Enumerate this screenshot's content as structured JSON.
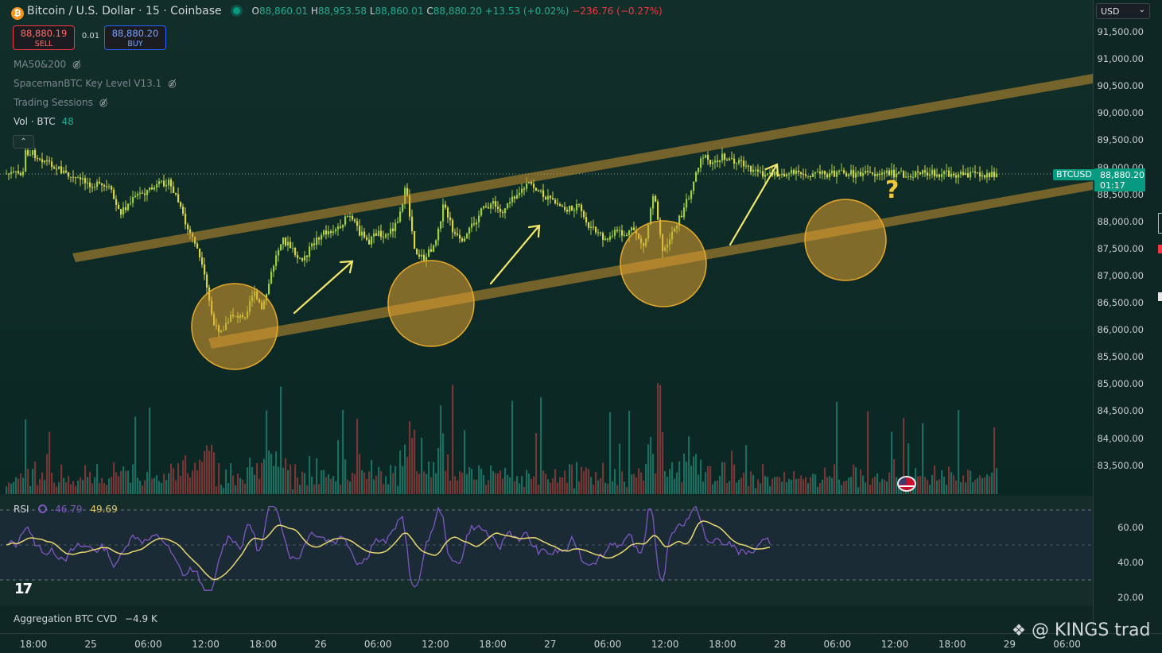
{
  "header": {
    "symbol": "Bitcoin / U.S. Dollar",
    "interval": "15",
    "exchange": "Coinbase",
    "open_label": "O",
    "open": "88,860.01",
    "high_label": "H",
    "high": "88,953.58",
    "low_label": "L",
    "low": "88,860.01",
    "close_label": "C",
    "close": "88,880.20",
    "change": "+13.53 (+0.02%)",
    "change2": "−236.76 (−0.27%)"
  },
  "trade": {
    "sell_price": "88,880.19",
    "sell_label": "SELL",
    "spread": "0.01",
    "buy_price": "88,880.20",
    "buy_label": "BUY"
  },
  "indicators": {
    "ma": "MA50&200",
    "keylevel": "SpacemanBTC Key Level V13.1",
    "sessions": "Trading Sessions",
    "vol_label": "Vol · BTC",
    "vol_value": "48"
  },
  "currency": "USD",
  "price_axis": [
    "91,500.00",
    "91,000.00",
    "90,500.00",
    "90,000.00",
    "89,500.00",
    "89,000.00",
    "88,500.00",
    "88,000.00",
    "87,500.00",
    "87,000.00",
    "86,500.00",
    "86,000.00",
    "85,500.00",
    "85,000.00",
    "84,500.00",
    "84,000.00",
    "83,500.00"
  ],
  "rsi_axis": [
    "60.00",
    "40.00",
    "20.00"
  ],
  "last_price": {
    "symbol": "BTCUSD",
    "price": "88,880.20",
    "countdown": "01:17"
  },
  "rsi": {
    "label": "RSI",
    "value": "46.79",
    "ma_value": "49.69"
  },
  "cvd": {
    "label": "Aggregation BTC CVD",
    "value": "−4.9 K"
  },
  "time_axis": [
    "18:00",
    "25",
    "06:00",
    "12:00",
    "18:00",
    "26",
    "06:00",
    "12:00",
    "18:00",
    "27",
    "06:00",
    "12:00",
    "18:00",
    "28",
    "06:00",
    "12:00",
    "18:00",
    "29",
    "06:00"
  ],
  "annotation": {
    "question": "?"
  },
  "tv_logo": "17",
  "watermark": "@ KINGS trad",
  "colors": {
    "up": "#089981",
    "down": "#f23645",
    "channel": "#c9922f",
    "circle": "#e0a030",
    "arrow": "#f4e86a",
    "rsi": "#7e57c2",
    "rsi_ma": "#e8d770"
  },
  "chart_data": {
    "type": "candlestick",
    "x_range": [
      "24 18:00",
      "28 18:00"
    ],
    "ylim": [
      83000,
      91800
    ],
    "close_path": [
      [
        "24 17:00",
        89300
      ],
      [
        "24 18:00",
        89250
      ],
      [
        "24 20:00",
        89050
      ],
      [
        "24 22:00",
        88800
      ],
      [
        "25 00:00",
        88700
      ],
      [
        "25 02:00",
        88600
      ],
      [
        "25 03:00",
        88150
      ],
      [
        "25 05:00",
        88500
      ],
      [
        "25 07:00",
        88650
      ],
      [
        "25 08:00",
        88750
      ],
      [
        "25 09:00",
        88450
      ],
      [
        "25 10:00",
        87900
      ],
      [
        "25 11:00",
        87600
      ],
      [
        "25 12:00",
        86900
      ],
      [
        "25 13:00",
        86000
      ],
      [
        "25 14:00",
        86050
      ],
      [
        "25 15:00",
        86300
      ],
      [
        "25 16:00",
        86200
      ],
      [
        "25 17:00",
        86700
      ],
      [
        "25 18:00",
        86350
      ],
      [
        "25 19:00",
        87100
      ],
      [
        "25 20:00",
        87700
      ],
      [
        "25 21:00",
        87500
      ],
      [
        "25 22:00",
        87250
      ],
      [
        "26 00:00",
        87750
      ],
      [
        "26 02:00",
        87900
      ],
      [
        "26 03:00",
        88100
      ],
      [
        "26 05:00",
        87600
      ],
      [
        "26 06:00",
        87800
      ],
      [
        "26 07:00",
        87750
      ],
      [
        "26 08:00",
        87950
      ],
      [
        "26 09:00",
        88600
      ],
      [
        "26 10:00",
        87450
      ],
      [
        "26 11:00",
        87300
      ],
      [
        "26 12:00",
        87600
      ],
      [
        "26 13:00",
        88300
      ],
      [
        "26 14:00",
        87800
      ],
      [
        "26 15:00",
        87550
      ],
      [
        "26 16:00",
        87950
      ],
      [
        "26 17:00",
        88200
      ],
      [
        "26 18:00",
        88350
      ],
      [
        "26 19:00",
        88150
      ],
      [
        "26 20:00",
        88450
      ],
      [
        "26 21:00",
        88550
      ],
      [
        "26 22:00",
        88700
      ],
      [
        "27 00:00",
        88400
      ],
      [
        "27 02:00",
        88200
      ],
      [
        "27 03:00",
        88300
      ],
      [
        "27 04:00",
        87950
      ],
      [
        "27 05:00",
        87800
      ],
      [
        "27 06:00",
        87650
      ],
      [
        "27 07:00",
        87800
      ],
      [
        "27 08:00",
        87750
      ],
      [
        "27 09:00",
        87850
      ],
      [
        "27 10:00",
        87500
      ],
      [
        "27 11:00",
        88600
      ],
      [
        "27 12:00",
        87400
      ],
      [
        "27 13:00",
        87850
      ],
      [
        "27 14:00",
        88150
      ],
      [
        "27 15:00",
        88650
      ],
      [
        "27 16:00",
        89250
      ],
      [
        "27 17:00",
        89050
      ],
      [
        "27 18:00",
        89200
      ],
      [
        "27 19:00",
        89150
      ],
      [
        "27 20:00",
        89100
      ],
      [
        "27 21:00",
        88950
      ],
      [
        "27 22:00",
        88880
      ]
    ],
    "channel_upper": [
      [
        "25 14:00",
        87400
      ],
      [
        "28 22:00",
        90650
      ]
    ],
    "channel_lower": [
      [
        "25 15:00",
        85800
      ],
      [
        "28 22:00",
        88650
      ]
    ],
    "support_touches": [
      [
        "25 16:00",
        86050
      ],
      [
        "26 12:00",
        86500
      ],
      [
        "27 12:00",
        87000
      ],
      [
        "28 15:00",
        87850
      ]
    ],
    "rsi": {
      "ylim": [
        10,
        75
      ],
      "levels": [
        70,
        50,
        30
      ],
      "last": 46.79,
      "ma_last": 49.69
    }
  }
}
